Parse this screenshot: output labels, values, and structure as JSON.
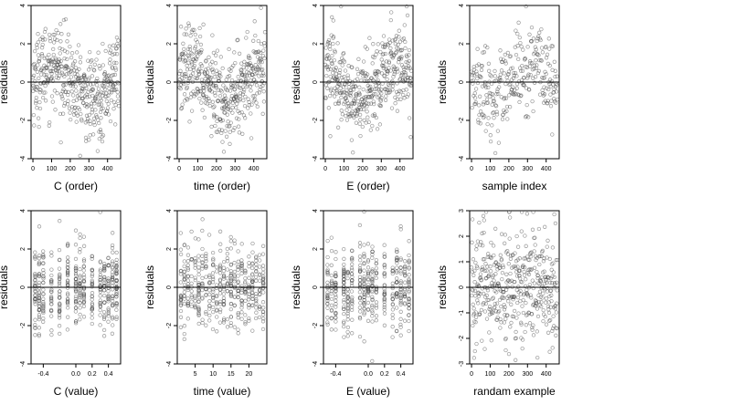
{
  "figure": {
    "point_color": "#444444",
    "zero_line_color": "#000000"
  },
  "chart_data": [
    {
      "type": "scatter",
      "title": "",
      "xlabel": "C (order)",
      "ylabel": "residuals",
      "xlim": [
        -10,
        470
      ],
      "ylim": [
        -4,
        4
      ],
      "xticks": [
        0,
        100,
        200,
        300,
        400
      ],
      "xtick_labels": [
        "0",
        "100",
        "200",
        "300",
        "400"
      ],
      "yticks": [
        -4,
        -2,
        0,
        2,
        4
      ],
      "ytick_labels": [
        "-4",
        "-2",
        "0",
        "2",
        "4"
      ],
      "n_points": 450,
      "x_pattern": "index",
      "y_pattern": "trend",
      "hline": 0
    },
    {
      "type": "scatter",
      "title": "",
      "xlabel": "time (order)",
      "ylabel": "residuals",
      "xlim": [
        -10,
        470
      ],
      "ylim": [
        -4,
        4
      ],
      "xticks": [
        0,
        100,
        200,
        300,
        400
      ],
      "xtick_labels": [
        "0",
        "100",
        "200",
        "300",
        "400"
      ],
      "yticks": [
        -4,
        -2,
        0,
        2,
        4
      ],
      "ytick_labels": [
        "-4",
        "-2",
        "0",
        "2",
        "4"
      ],
      "n_points": 450,
      "x_pattern": "index",
      "y_pattern": "trend",
      "hline": 0
    },
    {
      "type": "scatter",
      "title": "",
      "xlabel": "E (order)",
      "ylabel": "residuals",
      "xlim": [
        -10,
        470
      ],
      "ylim": [
        -4,
        4
      ],
      "xticks": [
        0,
        100,
        200,
        300,
        400
      ],
      "xtick_labels": [
        "0",
        "100",
        "200",
        "300",
        "400"
      ],
      "yticks": [
        -4,
        -2,
        0,
        2,
        4
      ],
      "ytick_labels": [
        "-4",
        "-2",
        "0",
        "2",
        "4"
      ],
      "n_points": 450,
      "x_pattern": "index",
      "y_pattern": "trend",
      "hline": 0
    },
    {
      "type": "scatter",
      "title": "",
      "xlabel": "sample index",
      "ylabel": "residuals",
      "xlim": [
        -10,
        470
      ],
      "ylim": [
        -4,
        4
      ],
      "xticks": [
        0,
        100,
        200,
        300,
        400
      ],
      "xtick_labels": [
        "0",
        "100",
        "200",
        "300",
        "400"
      ],
      "yticks": [
        -4,
        -2,
        0,
        2,
        4
      ],
      "ytick_labels": [
        "-4",
        "-2",
        "0",
        "2",
        "4"
      ],
      "n_points": 300,
      "x_pattern": "index",
      "y_pattern": "trend",
      "hline": 0
    },
    {
      "type": "scatter",
      "title": "",
      "xlabel": "C (value)",
      "ylabel": "residuals",
      "xlim": [
        -0.55,
        0.55
      ],
      "ylim": [
        -4,
        4
      ],
      "xticks": [
        -0.4,
        0.0,
        0.2,
        0.4
      ],
      "xtick_labels": [
        "-0.4",
        "0.0",
        "0.2",
        "0.4"
      ],
      "yticks": [
        -4,
        -2,
        0,
        2,
        4
      ],
      "ytick_labels": [
        "-4",
        "-2",
        "0",
        "2",
        "4"
      ],
      "n_points": 450,
      "x_pattern": "discrete",
      "x_levels": [
        -0.5,
        -0.45,
        -0.4,
        -0.3,
        -0.2,
        -0.1,
        0.0,
        0.05,
        0.1,
        0.2,
        0.3,
        0.35,
        0.4,
        0.45,
        0.5
      ],
      "y_pattern": "noise",
      "hline": 0
    },
    {
      "type": "scatter",
      "title": "",
      "xlabel": "time (value)",
      "ylabel": "residuals",
      "xlim": [
        0,
        25
      ],
      "ylim": [
        -4,
        4
      ],
      "xticks": [
        5,
        10,
        15,
        20
      ],
      "xtick_labels": [
        "5",
        "10",
        "15",
        "20"
      ],
      "yticks": [
        -4,
        -2,
        0,
        2,
        4
      ],
      "ytick_labels": [
        "-4",
        "-2",
        "0",
        "2",
        "4"
      ],
      "n_points": 450,
      "x_pattern": "discrete",
      "x_levels": [
        1,
        2,
        3,
        4,
        5,
        6,
        7,
        8,
        9,
        10,
        11,
        12,
        13,
        14,
        15,
        16,
        17,
        18,
        19,
        20,
        21,
        22,
        23,
        24
      ],
      "y_pattern": "noise",
      "hline": 0
    },
    {
      "type": "scatter",
      "title": "",
      "xlabel": "E (value)",
      "ylabel": "residuals",
      "xlim": [
        -0.55,
        0.55
      ],
      "ylim": [
        -4,
        4
      ],
      "xticks": [
        -0.4,
        0.0,
        0.2,
        0.4
      ],
      "xtick_labels": [
        "-0.4",
        "0.0",
        "0.2",
        "0.4"
      ],
      "yticks": [
        -4,
        -2,
        0,
        2,
        4
      ],
      "ytick_labels": [
        "-4",
        "-2",
        "0",
        "2",
        "4"
      ],
      "n_points": 450,
      "x_pattern": "discrete",
      "x_levels": [
        -0.5,
        -0.45,
        -0.4,
        -0.3,
        -0.25,
        -0.2,
        -0.1,
        -0.05,
        0.0,
        0.05,
        0.1,
        0.2,
        0.3,
        0.35,
        0.4,
        0.45,
        0.5
      ],
      "y_pattern": "noise",
      "hline": 0
    },
    {
      "type": "scatter",
      "title": "",
      "xlabel": "randam example",
      "ylabel": "residuals",
      "xlim": [
        -10,
        470
      ],
      "ylim": [
        -3,
        3
      ],
      "xticks": [
        0,
        100,
        200,
        300,
        400
      ],
      "xtick_labels": [
        "0",
        "100",
        "200",
        "300",
        "400"
      ],
      "yticks": [
        -3,
        -2,
        -1,
        0,
        1,
        2,
        3
      ],
      "ytick_labels": [
        "-3",
        "-2",
        "-1",
        "0",
        "1",
        "2",
        "3"
      ],
      "n_points": 450,
      "x_pattern": "index",
      "y_pattern": "noise",
      "hline": 0
    }
  ]
}
